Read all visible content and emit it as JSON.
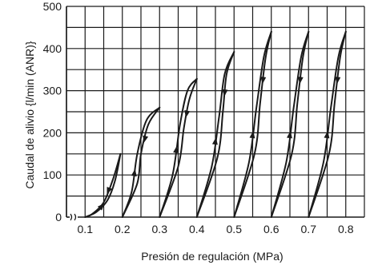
{
  "chart_data": {
    "type": "line",
    "title": "",
    "xlabel": "Presión de regulación (MPa)",
    "ylabel": "Caudal de alivio {l/min (ANR)}",
    "x_ticks": [
      0.1,
      0.2,
      0.3,
      0.4,
      0.5,
      0.6,
      0.7,
      0.8
    ],
    "x_tick_labels": [
      "0.1",
      "0.2",
      "0.3",
      "0.4",
      "0.5",
      "0.6",
      "0.7",
      "0.8"
    ],
    "y_ticks": [
      0,
      100,
      200,
      300,
      400,
      500
    ],
    "y_tick_labels": [
      "0",
      "100",
      "200",
      "300",
      "400",
      "500"
    ],
    "xlim": [
      0.05,
      0.85
    ],
    "ylim": [
      0,
      500
    ],
    "grid": true,
    "axis_break": "x-origin",
    "series": [
      {
        "rising": [
          [
            0.1,
            0
          ],
          [
            0.13,
            12
          ],
          [
            0.16,
            40
          ],
          [
            0.18,
            85
          ],
          [
            0.195,
            150
          ]
        ],
        "falling": [
          [
            0.195,
            150
          ],
          [
            0.175,
            90
          ],
          [
            0.15,
            35
          ],
          [
            0.12,
            8
          ],
          [
            0.1,
            0
          ]
        ]
      },
      {
        "rising": [
          [
            0.2,
            0
          ],
          [
            0.225,
            60
          ],
          [
            0.24,
            150
          ],
          [
            0.265,
            230
          ],
          [
            0.3,
            260
          ]
        ],
        "falling": [
          [
            0.3,
            260
          ],
          [
            0.27,
            220
          ],
          [
            0.25,
            150
          ],
          [
            0.24,
            80
          ],
          [
            0.2,
            0
          ]
        ]
      },
      {
        "rising": [
          [
            0.3,
            0
          ],
          [
            0.335,
            100
          ],
          [
            0.355,
            220
          ],
          [
            0.375,
            300
          ],
          [
            0.4,
            328
          ]
        ],
        "falling": [
          [
            0.4,
            328
          ],
          [
            0.38,
            280
          ],
          [
            0.365,
            210
          ],
          [
            0.35,
            120
          ],
          [
            0.3,
            0
          ]
        ]
      },
      {
        "rising": [
          [
            0.4,
            0
          ],
          [
            0.44,
            120
          ],
          [
            0.46,
            240
          ],
          [
            0.475,
            340
          ],
          [
            0.5,
            392
          ]
        ],
        "falling": [
          [
            0.5,
            392
          ],
          [
            0.48,
            340
          ],
          [
            0.47,
            250
          ],
          [
            0.455,
            140
          ],
          [
            0.4,
            0
          ]
        ]
      },
      {
        "rising": [
          [
            0.5,
            0
          ],
          [
            0.54,
            130
          ],
          [
            0.56,
            260
          ],
          [
            0.58,
            380
          ],
          [
            0.6,
            440
          ]
        ],
        "falling": [
          [
            0.6,
            440
          ],
          [
            0.585,
            380
          ],
          [
            0.57,
            270
          ],
          [
            0.555,
            150
          ],
          [
            0.5,
            0
          ]
        ]
      },
      {
        "rising": [
          [
            0.6,
            0
          ],
          [
            0.64,
            130
          ],
          [
            0.66,
            260
          ],
          [
            0.68,
            380
          ],
          [
            0.7,
            440
          ]
        ],
        "falling": [
          [
            0.7,
            440
          ],
          [
            0.685,
            380
          ],
          [
            0.67,
            270
          ],
          [
            0.655,
            150
          ],
          [
            0.6,
            0
          ]
        ]
      },
      {
        "rising": [
          [
            0.7,
            0
          ],
          [
            0.74,
            130
          ],
          [
            0.76,
            260
          ],
          [
            0.78,
            380
          ],
          [
            0.8,
            440
          ]
        ],
        "falling": [
          [
            0.8,
            440
          ],
          [
            0.785,
            380
          ],
          [
            0.77,
            270
          ],
          [
            0.755,
            150
          ],
          [
            0.7,
            0
          ]
        ]
      }
    ]
  }
}
